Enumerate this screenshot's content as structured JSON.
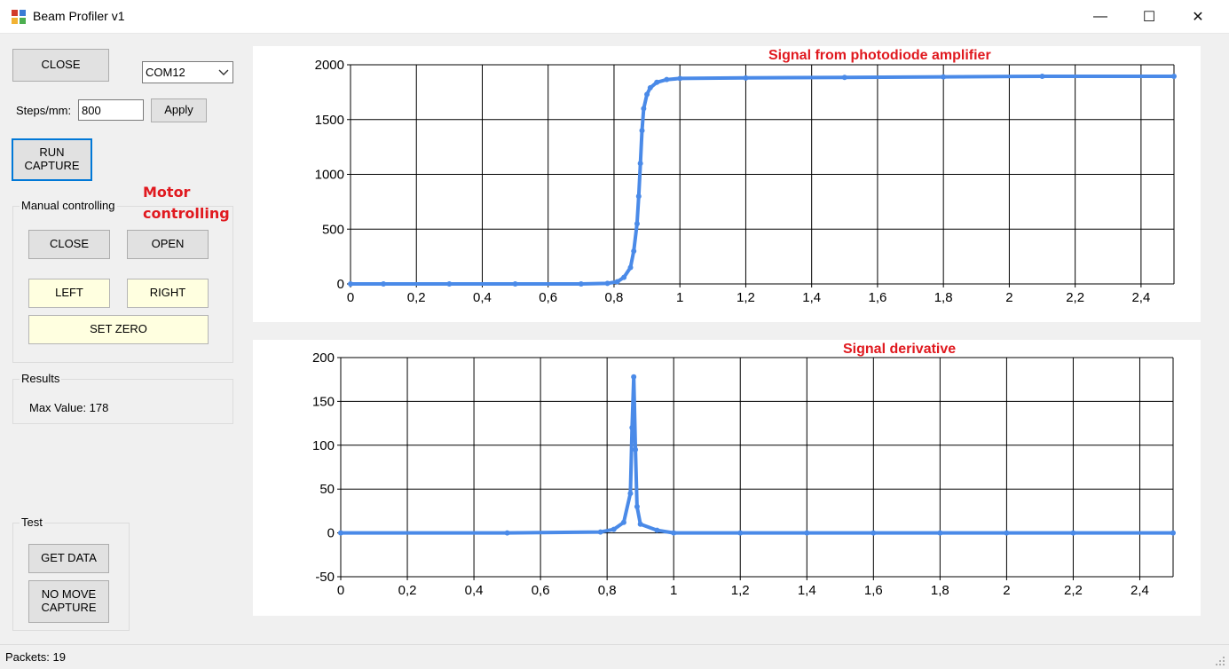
{
  "window": {
    "title": "Beam Profiler v1",
    "minimize_glyph": "—",
    "maximize_glyph": "☐",
    "close_glyph": "✕"
  },
  "controls": {
    "close_label": "CLOSE",
    "com_port": "COM12",
    "steps_label": "Steps/mm:",
    "steps_value": "800",
    "apply_label": "Apply",
    "run_capture_line1": "RUN",
    "run_capture_line2": "CAPTURE"
  },
  "annotations": {
    "motor_line1": "Motor",
    "motor_line2": "controlling",
    "top_chart_title": "Signal from photodiode amplifier",
    "bottom_chart_title": "Signal derivative"
  },
  "manual": {
    "group_title": "Manual controlling",
    "close_label": "CLOSE",
    "open_label": "OPEN",
    "left_label": "LEFT",
    "right_label": "RIGHT",
    "set_zero_label": "SET ZERO"
  },
  "results": {
    "group_title": "Results",
    "max_value_text": "Max Value: 178"
  },
  "test": {
    "group_title": "Test",
    "get_data_label": "GET DATA",
    "no_move_line1": "NO MOVE",
    "no_move_line2": "CAPTURE"
  },
  "status": {
    "packets_text": "Packets: 19"
  },
  "colors": {
    "series": "#4a8ae8",
    "annotation_red": "#e0191f"
  },
  "chart_data": [
    {
      "type": "scatter",
      "title": "Signal from photodiode amplifier",
      "xlim": [
        0,
        2.5
      ],
      "ylim": [
        0,
        2000
      ],
      "x_ticks": [
        "0",
        "0,2",
        "0,4",
        "0,6",
        "0,8",
        "1",
        "1,2",
        "1,4",
        "1,6",
        "1,8",
        "2",
        "2,2",
        "2,4"
      ],
      "y_ticks": [
        "0",
        "500",
        "1000",
        "1500",
        "2000"
      ],
      "grid": true,
      "series": [
        {
          "color": "#4a8ae8",
          "x": [
            0,
            0.1,
            0.3,
            0.5,
            0.7,
            0.78,
            0.81,
            0.83,
            0.85,
            0.86,
            0.87,
            0.875,
            0.88,
            0.885,
            0.89,
            0.9,
            0.91,
            0.93,
            0.96,
            1.0,
            1.2,
            1.5,
            1.8,
            2.1,
            2.5
          ],
          "y": [
            0,
            0,
            0,
            0,
            0,
            5,
            20,
            60,
            150,
            300,
            550,
            800,
            1100,
            1400,
            1600,
            1730,
            1790,
            1840,
            1865,
            1875,
            1880,
            1885,
            1890,
            1895,
            1895
          ]
        }
      ]
    },
    {
      "type": "scatter",
      "title": "Signal derivative",
      "xlim": [
        0,
        2.5
      ],
      "ylim": [
        -50,
        200
      ],
      "x_ticks": [
        "0",
        "0,2",
        "0,4",
        "0,6",
        "0,8",
        "1",
        "1,2",
        "1,4",
        "1,6",
        "1,8",
        "2",
        "2,2",
        "2,4"
      ],
      "y_ticks": [
        "-50",
        "0",
        "50",
        "100",
        "150",
        "200"
      ],
      "grid": true,
      "series": [
        {
          "color": "#4a8ae8",
          "x": [
            0,
            0.5,
            0.78,
            0.82,
            0.85,
            0.87,
            0.875,
            0.88,
            0.885,
            0.89,
            0.9,
            0.95,
            1.0,
            1.2,
            1.4,
            1.6,
            1.8,
            2.0,
            2.2,
            2.5
          ],
          "y": [
            0,
            0,
            1,
            4,
            12,
            45,
            120,
            178,
            95,
            30,
            10,
            3,
            0,
            0,
            0,
            0,
            0,
            0,
            0,
            0
          ]
        }
      ]
    }
  ]
}
